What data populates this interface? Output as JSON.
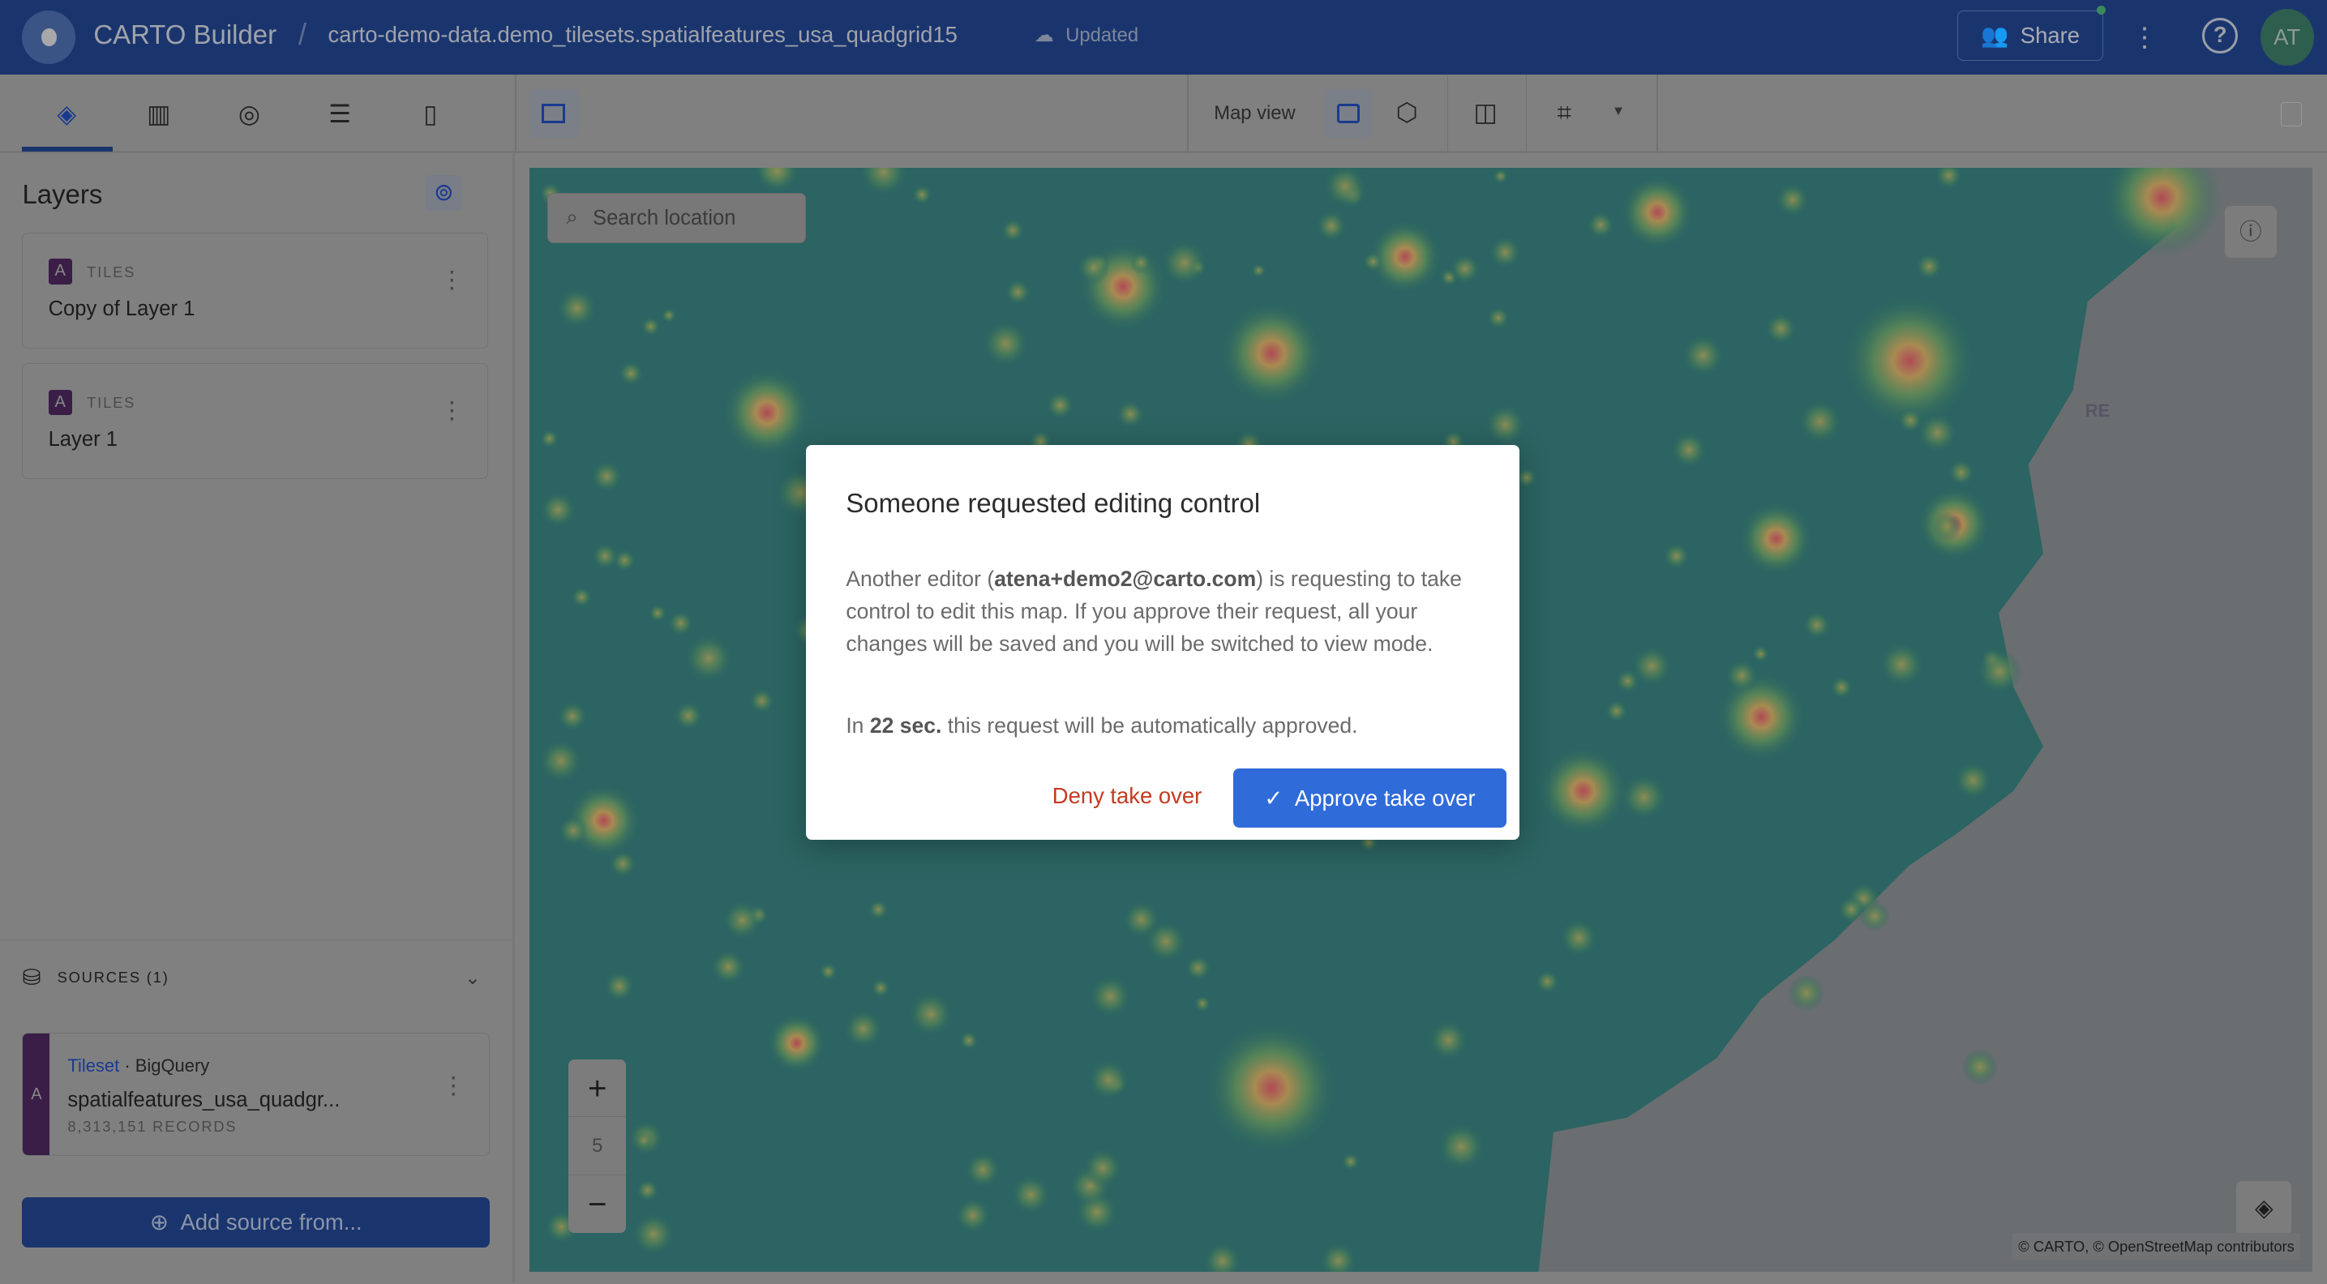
{
  "header": {
    "app_title": "CARTO Builder",
    "separator": "/",
    "map_name": "carto-demo-data.demo_tilesets.spatialfeatures_usa_quadgrid15",
    "save_status": "Updated",
    "share_label": "Share",
    "avatar_initials": "AT",
    "help_glyph": "?"
  },
  "toolbar": {
    "left_tabs": [
      {
        "icon": "layers-icon"
      },
      {
        "icon": "widgets-icon"
      },
      {
        "icon": "interactions-icon"
      },
      {
        "icon": "legend-icon"
      },
      {
        "icon": "basemap-icon"
      }
    ],
    "map_view_label": "Map view"
  },
  "layers_panel": {
    "title": "Layers",
    "layers": [
      {
        "badge": "A",
        "type": "TILES",
        "name": "Copy of Layer 1"
      },
      {
        "badge": "A",
        "type": "TILES",
        "name": "Layer 1"
      }
    ]
  },
  "sources": {
    "title": "SOURCES (1)",
    "items": [
      {
        "badge": "A",
        "kind": "Tileset",
        "provider": "· BigQuery",
        "name": "spatialfeatures_usa_quadgr...",
        "records": "8,313,151 RECORDS"
      }
    ],
    "add_label": "Add source from..."
  },
  "map": {
    "search_placeholder": "Search location",
    "zoom_level": "5",
    "zoom_in": "+",
    "zoom_out": "−",
    "attribution": "© CARTO, © OpenStreetMap contributors",
    "label_re": "RE"
  },
  "modal": {
    "title": "Someone requested editing control",
    "body_prefix": "Another editor (",
    "editor_email": "atena+demo2@carto.com",
    "body_suffix": ") is requesting to take control to edit this map. If you approve their request, all your changes will be saved and you will be switched to view mode.",
    "count_prefix": "In ",
    "countdown": "22 sec.",
    "count_suffix": " this request will be automatically approved.",
    "deny_label": "Deny take over",
    "approve_label": "Approve take over"
  },
  "colors": {
    "header": "#1a356e",
    "accent": "#2f6bd9",
    "deny": "#c23b22",
    "layer_badge": "#3a1e47",
    "map_land": "#2b6462",
    "map_sea": "#6a6e70"
  }
}
